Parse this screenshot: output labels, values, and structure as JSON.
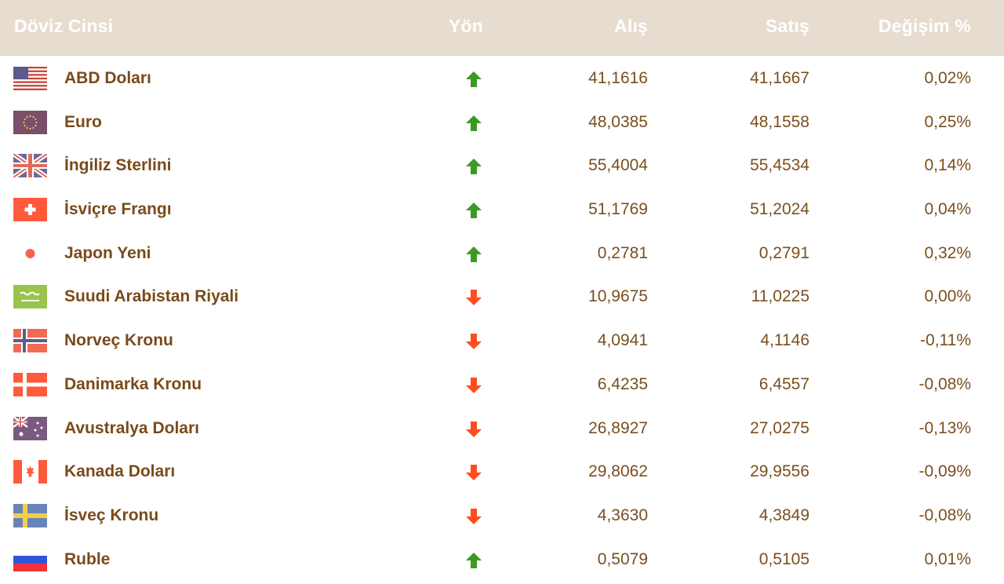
{
  "header": {
    "currency": "Döviz Cinsi",
    "direction": "Yön",
    "buy": "Alış",
    "sell": "Satış",
    "change": "Değişim %"
  },
  "colors": {
    "header_bg": "#e6ddd0",
    "header_text": "#ffffff",
    "name_text": "#7a4a1a",
    "value_text": "#7a4f1f",
    "arrow_up": "#3c9a24",
    "arrow_down": "#ff4c1f"
  },
  "rows": [
    {
      "name": "ABD Doları",
      "flag": "usa-flag-icon",
      "direction": "up",
      "buy": "41,1616",
      "sell": "41,1667",
      "change": "0,02%"
    },
    {
      "name": "Euro",
      "flag": "eu-flag-icon",
      "direction": "up",
      "buy": "48,0385",
      "sell": "48,1558",
      "change": "0,25%"
    },
    {
      "name": "İngiliz Sterlini",
      "flag": "uk-flag-icon",
      "direction": "up",
      "buy": "55,4004",
      "sell": "55,4534",
      "change": "0,14%"
    },
    {
      "name": "İsviçre Frangı",
      "flag": "swiss-flag-icon",
      "direction": "up",
      "buy": "51,1769",
      "sell": "51,2024",
      "change": "0,04%"
    },
    {
      "name": "Japon Yeni",
      "flag": "japan-flag-icon",
      "direction": "up",
      "buy": "0,2781",
      "sell": "0,2791",
      "change": "0,32%"
    },
    {
      "name": "Suudi Arabistan Riyali",
      "flag": "saudi-flag-icon",
      "direction": "down",
      "buy": "10,9675",
      "sell": "11,0225",
      "change": "0,00%"
    },
    {
      "name": "Norveç Kronu",
      "flag": "norway-flag-icon",
      "direction": "down",
      "buy": "4,0941",
      "sell": "4,1146",
      "change": "-0,11%"
    },
    {
      "name": "Danimarka Kronu",
      "flag": "denmark-flag-icon",
      "direction": "down",
      "buy": "6,4235",
      "sell": "6,4557",
      "change": "-0,08%"
    },
    {
      "name": "Avustralya Doları",
      "flag": "australia-flag-icon",
      "direction": "down",
      "buy": "26,8927",
      "sell": "27,0275",
      "change": "-0,13%"
    },
    {
      "name": "Kanada Doları",
      "flag": "canada-flag-icon",
      "direction": "down",
      "buy": "29,8062",
      "sell": "29,9556",
      "change": "-0,09%"
    },
    {
      "name": "İsveç Kronu",
      "flag": "sweden-flag-icon",
      "direction": "down",
      "buy": "4,3630",
      "sell": "4,3849",
      "change": "-0,08%"
    },
    {
      "name": "Ruble",
      "flag": "russia-flag-icon",
      "direction": "up",
      "buy": "0,5079",
      "sell": "0,5105",
      "change": "0,01%"
    }
  ]
}
